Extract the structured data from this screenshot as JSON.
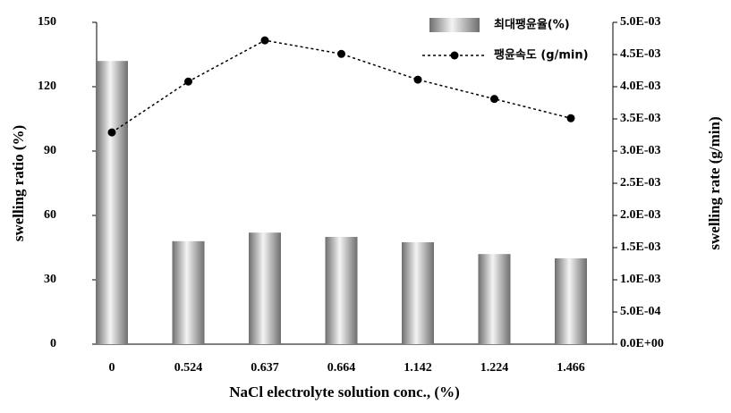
{
  "chart_data": {
    "type": "bar",
    "x_label": "NaCl electrolyte solution conc., (%)",
    "y_label": "swelling ratio (%)",
    "y2_label": "swelling rate (g/min)",
    "categories": [
      "0",
      "0.524",
      "0.637",
      "0.664",
      "1.142",
      "1.224",
      "1.466"
    ],
    "series": [
      {
        "name": "최대팽윤율(%)",
        "type": "bar",
        "color": "#6e6e6e",
        "values": [
          132,
          48,
          52,
          50,
          47.5,
          42,
          40
        ]
      },
      {
        "name": "팽윤속도 (g/min)",
        "type": "line",
        "axis": "y2",
        "line_style": "dotted",
        "color": "#000000",
        "values": [
          0.00329,
          0.00408,
          0.00472,
          0.00451,
          0.00411,
          0.00381,
          0.00351
        ]
      }
    ],
    "ylim": [
      0,
      150
    ],
    "yticks": [
      0,
      30,
      60,
      90,
      120,
      150
    ],
    "y2lim": [
      0,
      0.005
    ],
    "y2ticks": [
      {
        "value": 0,
        "label": "0.0E+00"
      },
      {
        "value": 0.0005,
        "label": "5.0E-04"
      },
      {
        "value": 0.001,
        "label": "1.0E-03"
      },
      {
        "value": 0.0015,
        "label": "1.5E-03"
      },
      {
        "value": 0.002,
        "label": "2.0E-03"
      },
      {
        "value": 0.0025,
        "label": "2.5E-03"
      },
      {
        "value": 0.003,
        "label": "3.0E-03"
      },
      {
        "value": 0.0035,
        "label": "3.5E-03"
      },
      {
        "value": 0.004,
        "label": "4.0E-03"
      },
      {
        "value": 0.0045,
        "label": "4.5E-03"
      },
      {
        "value": 0.005,
        "label": "5.0E-03"
      }
    ],
    "grid": false,
    "legend_position": "top-right"
  }
}
